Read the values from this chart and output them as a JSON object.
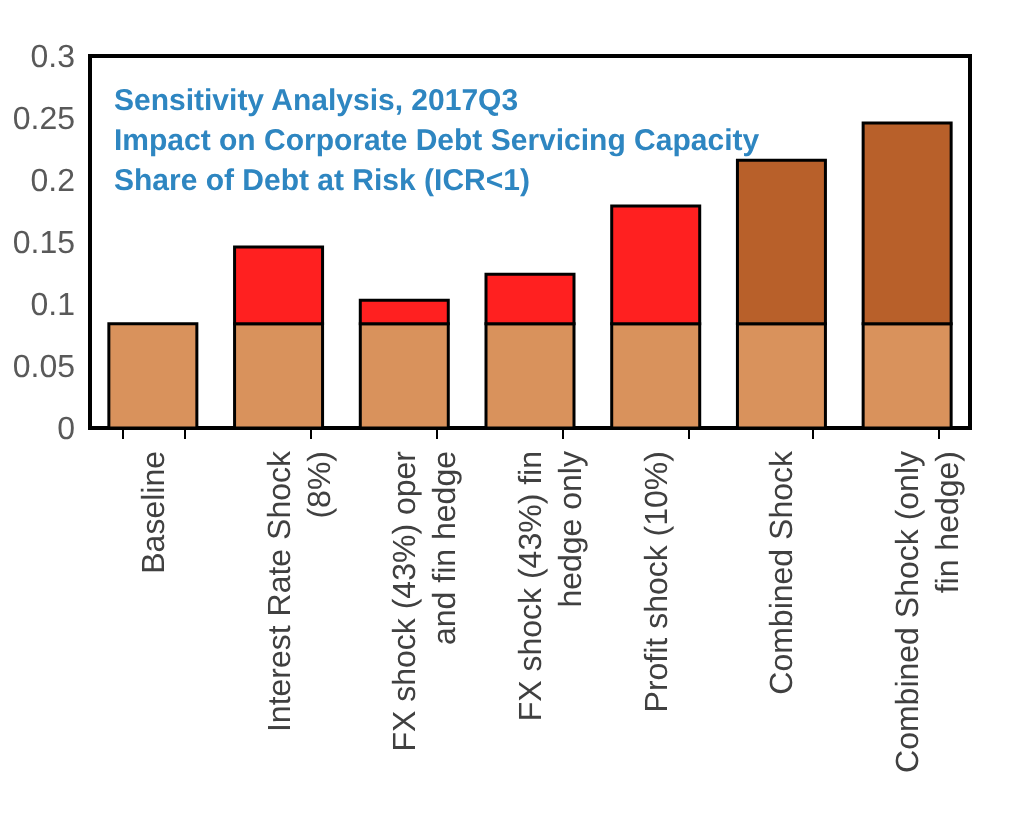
{
  "chart_data": {
    "type": "bar",
    "title": "Sensitivity Analysis, 2017Q3",
    "annotations": [
      "Impact on Corporate Debt Servicing Capacity",
      "Share of Debt at Risk (ICR<1)"
    ],
    "categories": [
      "Baseline",
      "Interest Rate Shock (8%)",
      "FX shock (43%) oper and fin hedge",
      "FX shock (43%) fin hedge only",
      "Profit shock (10%)",
      "Combined Shock",
      "Combined Shock (only fin hedge)"
    ],
    "stacked": true,
    "series": [
      {
        "color": "#d9925c",
        "values": [
          0.084,
          0.084,
          0.084,
          0.084,
          0.084,
          0.084,
          0.084
        ]
      },
      {
        "color": "#ff2020",
        "values": [
          null,
          0.062,
          0.019,
          0.04,
          0.095,
          null,
          null
        ]
      },
      {
        "color": "#b8602a",
        "values": [
          null,
          null,
          null,
          null,
          null,
          0.132,
          0.162
        ]
      }
    ],
    "ylim": [
      0,
      0.3
    ],
    "yticks": [
      0,
      0.05,
      0.1,
      0.15,
      0.2,
      0.25,
      0.3
    ],
    "grid": false,
    "legend": false
  }
}
